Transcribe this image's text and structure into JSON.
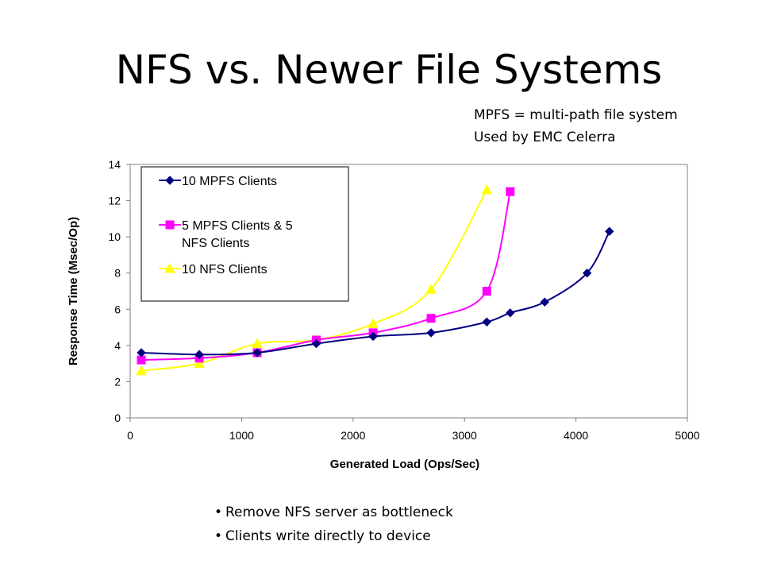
{
  "slide": {
    "title": "NFS vs. Newer File Systems",
    "note_lines": [
      "MPFS = multi-path file system",
      "Used by EMC Celerra"
    ],
    "bullets": [
      "Remove NFS server as bottleneck",
      "Clients write directly to device"
    ]
  },
  "chart_data": {
    "type": "line",
    "title": "",
    "xlabel": "Generated Load (Ops/Sec)",
    "ylabel": "Response Time (Msec/Op)",
    "xlim": [
      0,
      5000
    ],
    "ylim": [
      0,
      14
    ],
    "x_ticks": [
      0,
      1000,
      2000,
      3000,
      4000,
      5000
    ],
    "y_ticks": [
      0,
      2,
      4,
      6,
      8,
      10,
      12,
      14
    ],
    "grid": false,
    "legend_position": "top-left",
    "series": [
      {
        "name": "10 MPFS Clients",
        "color": "#000080",
        "marker": "diamond",
        "x": [
          100,
          620,
          1140,
          1670,
          2180,
          2700,
          3200,
          3410,
          3720,
          4100,
          4300
        ],
        "y": [
          3.6,
          3.5,
          3.6,
          4.1,
          4.5,
          4.7,
          5.3,
          5.8,
          6.4,
          8.0,
          10.3
        ]
      },
      {
        "name": "5 MPFS Clients & 5 NFS Clients",
        "color": "#ff00ff",
        "marker": "square",
        "x": [
          100,
          620,
          1140,
          1670,
          2180,
          2700,
          3200,
          3410
        ],
        "y": [
          3.2,
          3.3,
          3.6,
          4.3,
          4.7,
          5.5,
          7.0,
          12.5
        ]
      },
      {
        "name": "10 NFS Clients",
        "color": "#ffff00",
        "marker": "triangle",
        "x": [
          100,
          620,
          1140,
          1670,
          2180,
          2700,
          3200
        ],
        "y": [
          2.6,
          3.0,
          4.1,
          4.3,
          5.2,
          7.1,
          12.6
        ]
      }
    ]
  }
}
